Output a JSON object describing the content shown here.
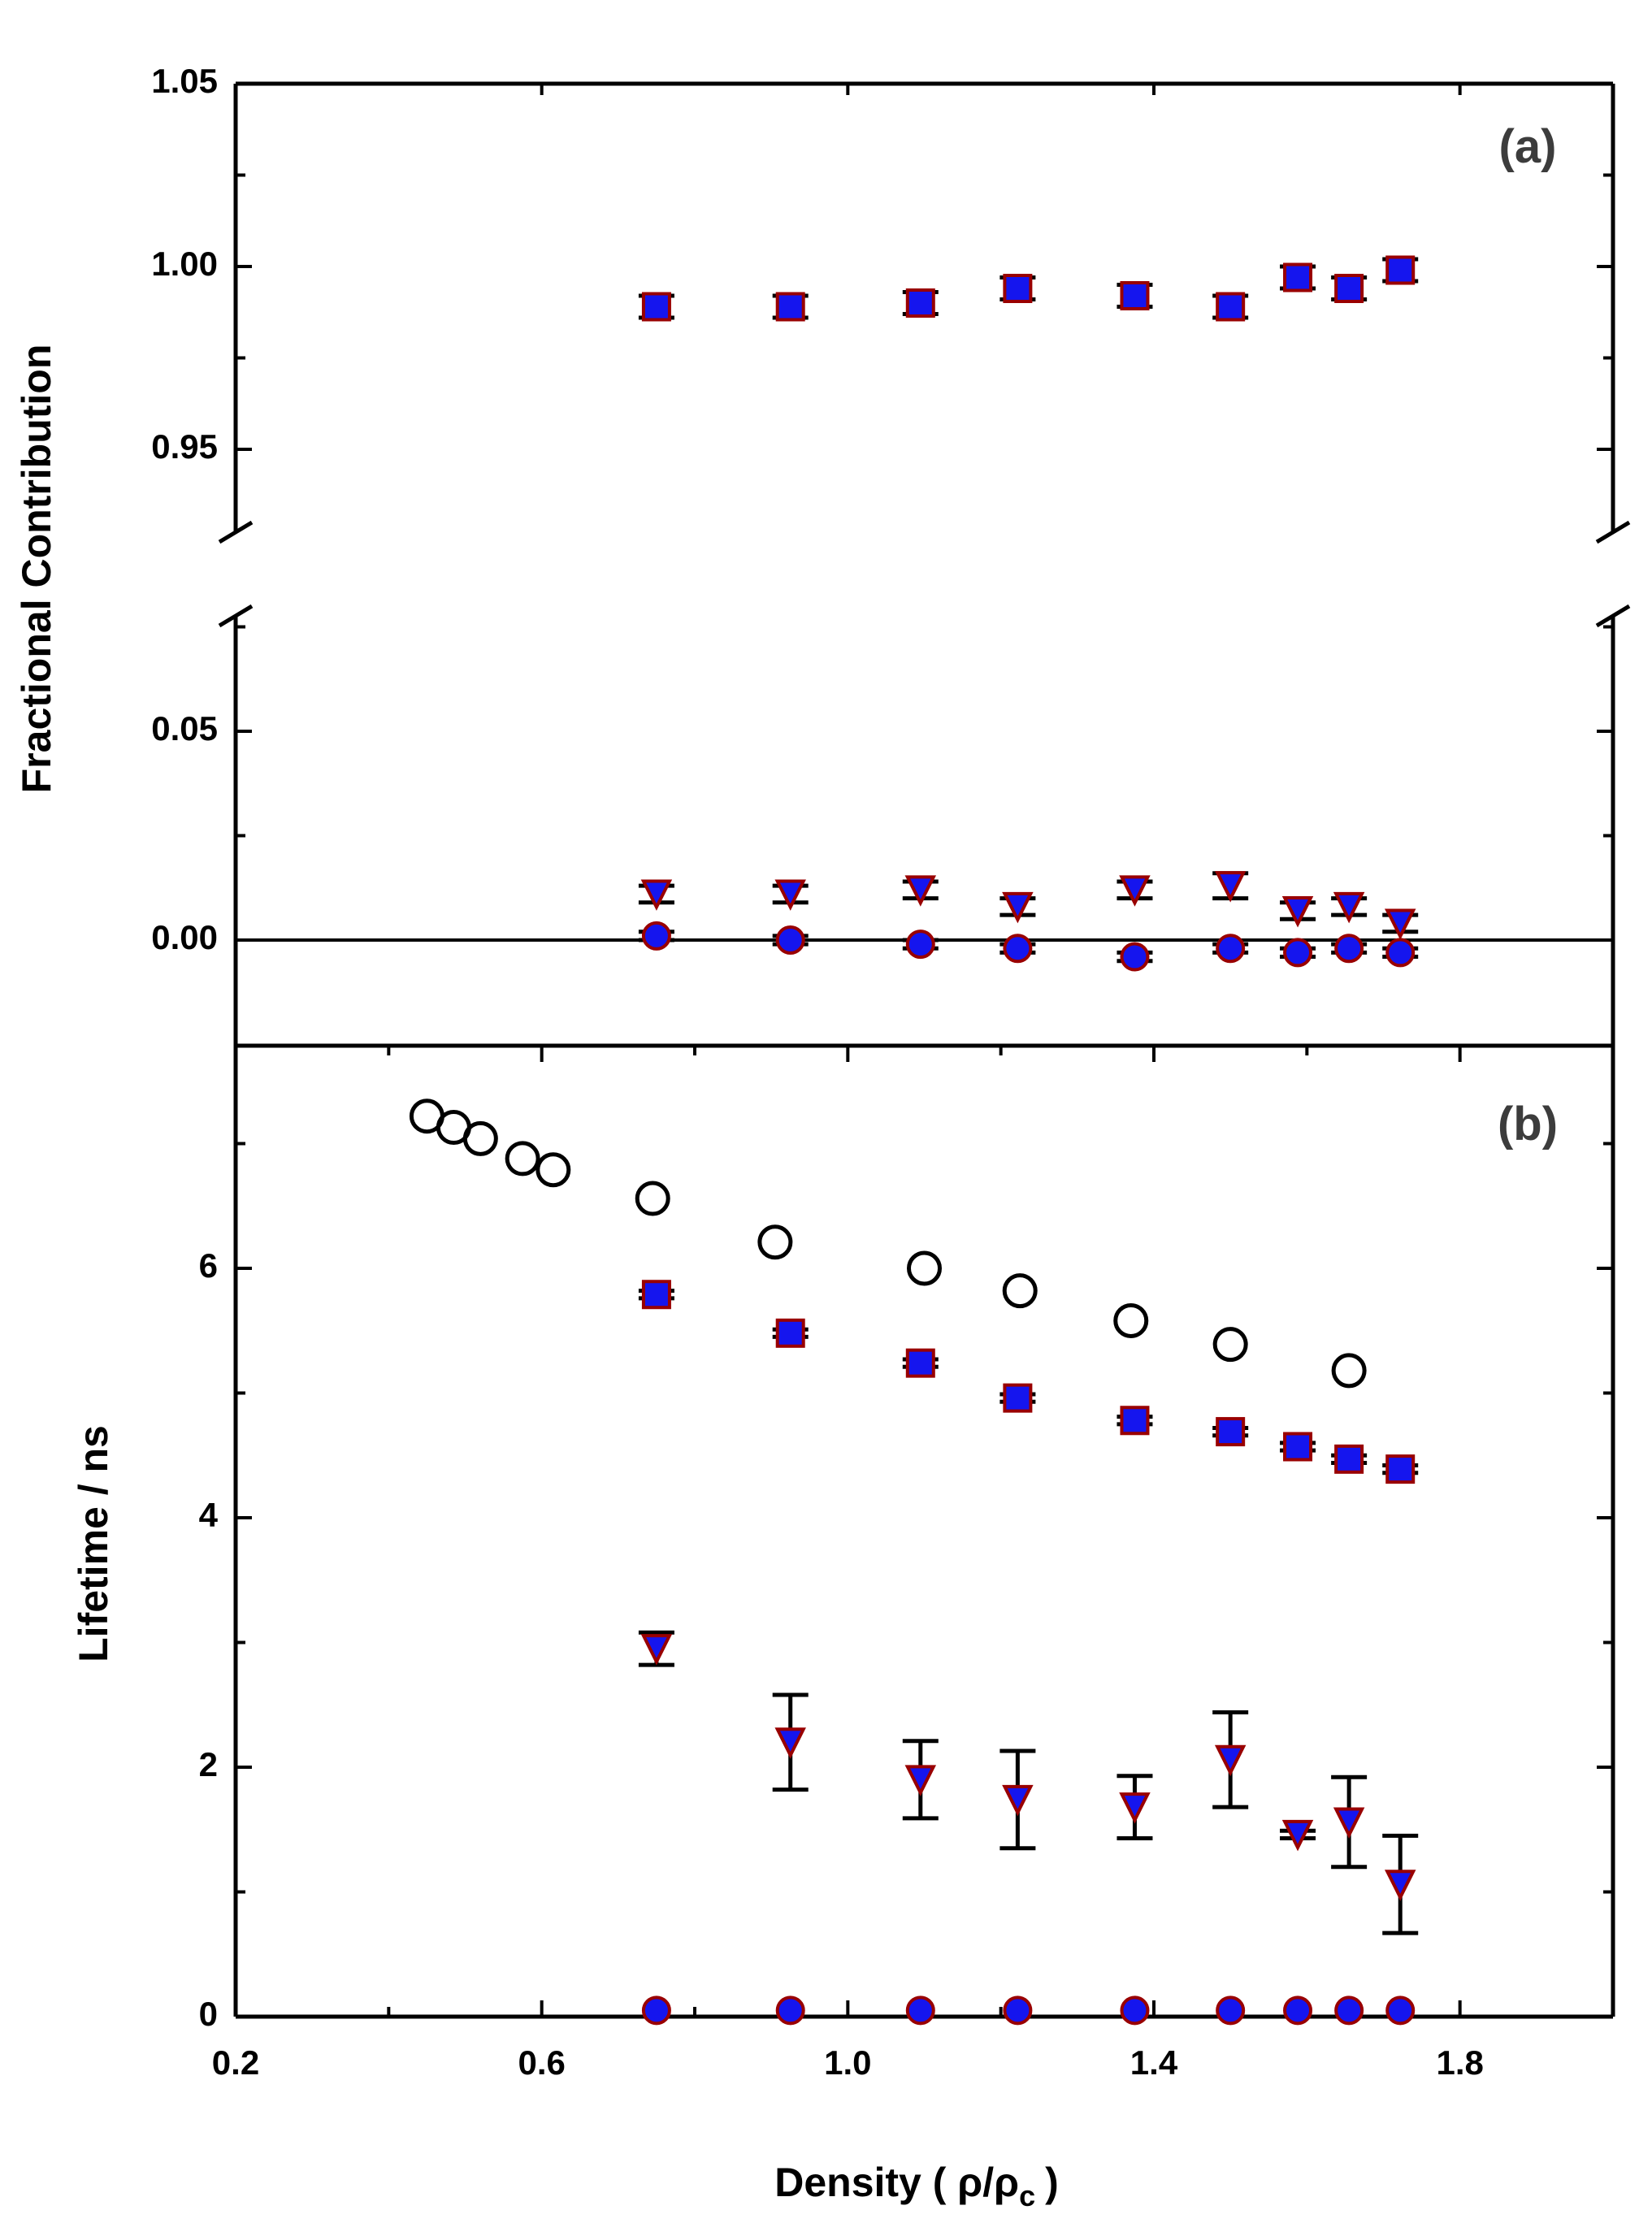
{
  "chart_data": [
    {
      "panel": "(a)",
      "type": "scatter",
      "ylabel": "Fractional Contribution",
      "xlim": [
        0.2,
        2.0
      ],
      "ylim_upper": [
        0.925,
        1.05
      ],
      "ylim_lower": [
        -0.025,
        0.08
      ],
      "yticks_upper": [
        {
          "value": 0.95,
          "label": "0.95"
        },
        {
          "value": 1.0,
          "label": "1.00"
        },
        {
          "value": 1.05,
          "label": "1.05"
        }
      ],
      "yticks_lower": [
        {
          "value": 0.0,
          "label": "0.00"
        },
        {
          "value": 0.05,
          "label": "0.05"
        }
      ],
      "axis_broken": true,
      "zero_line": true,
      "series": [
        {
          "marker": "square",
          "fill": "#1515ee",
          "edge": "#990000",
          "points": [
            {
              "x": 0.75,
              "y": 0.989,
              "err": 0.003
            },
            {
              "x": 0.925,
              "y": 0.989,
              "err": 0.003
            },
            {
              "x": 1.095,
              "y": 0.99,
              "err": 0.003
            },
            {
              "x": 1.222,
              "y": 0.994,
              "err": 0.003
            },
            {
              "x": 1.375,
              "y": 0.992,
              "err": 0.003
            },
            {
              "x": 1.5,
              "y": 0.989,
              "err": 0.003
            },
            {
              "x": 1.588,
              "y": 0.997,
              "err": 0.003
            },
            {
              "x": 1.655,
              "y": 0.994,
              "err": 0.003
            },
            {
              "x": 1.722,
              "y": 0.999,
              "err": 0.003
            }
          ]
        },
        {
          "marker": "triangle-down",
          "fill": "#1515ee",
          "edge": "#990000",
          "points": [
            {
              "x": 0.75,
              "y": 0.011,
              "err": 0.002
            },
            {
              "x": 0.925,
              "y": 0.011,
              "err": 0.002
            },
            {
              "x": 1.095,
              "y": 0.012,
              "err": 0.002
            },
            {
              "x": 1.222,
              "y": 0.008,
              "err": 0.002
            },
            {
              "x": 1.375,
              "y": 0.012,
              "err": 0.002
            },
            {
              "x": 1.5,
              "y": 0.013,
              "err": 0.003
            },
            {
              "x": 1.588,
              "y": 0.007,
              "err": 0.002
            },
            {
              "x": 1.655,
              "y": 0.008,
              "err": 0.002
            },
            {
              "x": 1.722,
              "y": 0.004,
              "err": 0.002
            }
          ]
        },
        {
          "marker": "circle",
          "fill": "#1515ee",
          "edge": "#990000",
          "points": [
            {
              "x": 0.75,
              "y": 0.001,
              "err": 0.001
            },
            {
              "x": 0.925,
              "y": 0.0,
              "err": 0.001
            },
            {
              "x": 1.095,
              "y": -0.001,
              "err": 0.001
            },
            {
              "x": 1.222,
              "y": -0.002,
              "err": 0.001
            },
            {
              "x": 1.375,
              "y": -0.004,
              "err": 0.001
            },
            {
              "x": 1.5,
              "y": -0.002,
              "err": 0.001
            },
            {
              "x": 1.588,
              "y": -0.003,
              "err": 0.001
            },
            {
              "x": 1.655,
              "y": -0.002,
              "err": 0.001
            },
            {
              "x": 1.722,
              "y": -0.003,
              "err": 0.001
            }
          ]
        }
      ]
    },
    {
      "panel": "(b)",
      "type": "scatter",
      "ylabel": "Lifetime / ns",
      "xlabel_prefix": "Density ( ρ/ρ",
      "xlabel_sub": "c",
      "xlabel_suffix": ")",
      "xlim": [
        0.2,
        2.0
      ],
      "ylim": [
        0,
        7.5
      ],
      "xticks": [
        {
          "value": 0.2,
          "label": "0.2"
        },
        {
          "value": 0.6,
          "label": "0.6"
        },
        {
          "value": 1.0,
          "label": "1.0"
        },
        {
          "value": 1.4,
          "label": "1.4"
        },
        {
          "value": 1.8,
          "label": "1.8"
        }
      ],
      "yticks": [
        {
          "value": 0,
          "label": "0"
        },
        {
          "value": 2,
          "label": "2"
        },
        {
          "value": 4,
          "label": "4"
        },
        {
          "value": 6,
          "label": "6"
        }
      ],
      "series": [
        {
          "marker": "open-circle",
          "fill": "none",
          "edge": "#000000",
          "points": [
            {
              "x": 0.45,
              "y": 7.22
            },
            {
              "x": 0.485,
              "y": 7.13
            },
            {
              "x": 0.52,
              "y": 7.04
            },
            {
              "x": 0.575,
              "y": 6.88
            },
            {
              "x": 0.615,
              "y": 6.79
            },
            {
              "x": 0.745,
              "y": 6.56
            },
            {
              "x": 0.905,
              "y": 6.21
            },
            {
              "x": 1.1,
              "y": 6.0
            },
            {
              "x": 1.225,
              "y": 5.82
            },
            {
              "x": 1.37,
              "y": 5.58
            },
            {
              "x": 1.5,
              "y": 5.39
            },
            {
              "x": 1.655,
              "y": 5.18
            }
          ]
        },
        {
          "marker": "square",
          "fill": "#1515ee",
          "edge": "#990000",
          "points": [
            {
              "x": 0.75,
              "y": 5.79,
              "err": 0.03
            },
            {
              "x": 0.925,
              "y": 5.48,
              "err": 0.03
            },
            {
              "x": 1.095,
              "y": 5.24,
              "err": 0.03
            },
            {
              "x": 1.222,
              "y": 4.96,
              "err": 0.03
            },
            {
              "x": 1.375,
              "y": 4.78,
              "err": 0.03
            },
            {
              "x": 1.5,
              "y": 4.69,
              "err": 0.03
            },
            {
              "x": 1.588,
              "y": 4.57,
              "err": 0.03
            },
            {
              "x": 1.655,
              "y": 4.47,
              "err": 0.03
            },
            {
              "x": 1.722,
              "y": 4.39,
              "err": 0.03
            }
          ]
        },
        {
          "marker": "triangle-down",
          "fill": "#1515ee",
          "edge": "#990000",
          "points": [
            {
              "x": 0.75,
              "y": 2.95,
              "err": 0.13
            },
            {
              "x": 0.925,
              "y": 2.2,
              "err": 0.38
            },
            {
              "x": 1.095,
              "y": 1.9,
              "err": 0.31
            },
            {
              "x": 1.222,
              "y": 1.74,
              "err": 0.39
            },
            {
              "x": 1.375,
              "y": 1.68,
              "err": 0.25
            },
            {
              "x": 1.5,
              "y": 2.06,
              "err": 0.38
            },
            {
              "x": 1.588,
              "y": 1.46,
              "err": 0.03
            },
            {
              "x": 1.655,
              "y": 1.56,
              "err": 0.36
            },
            {
              "x": 1.722,
              "y": 1.06,
              "err": 0.39
            }
          ]
        },
        {
          "marker": "circle",
          "fill": "#1515ee",
          "edge": "#990000",
          "points": [
            {
              "x": 0.75,
              "y": 0.05
            },
            {
              "x": 0.925,
              "y": 0.05
            },
            {
              "x": 1.095,
              "y": 0.05
            },
            {
              "x": 1.222,
              "y": 0.05
            },
            {
              "x": 1.375,
              "y": 0.05
            },
            {
              "x": 1.5,
              "y": 0.05
            },
            {
              "x": 1.588,
              "y": 0.05
            },
            {
              "x": 1.655,
              "y": 0.05
            },
            {
              "x": 1.722,
              "y": 0.05
            }
          ]
        }
      ]
    }
  ]
}
